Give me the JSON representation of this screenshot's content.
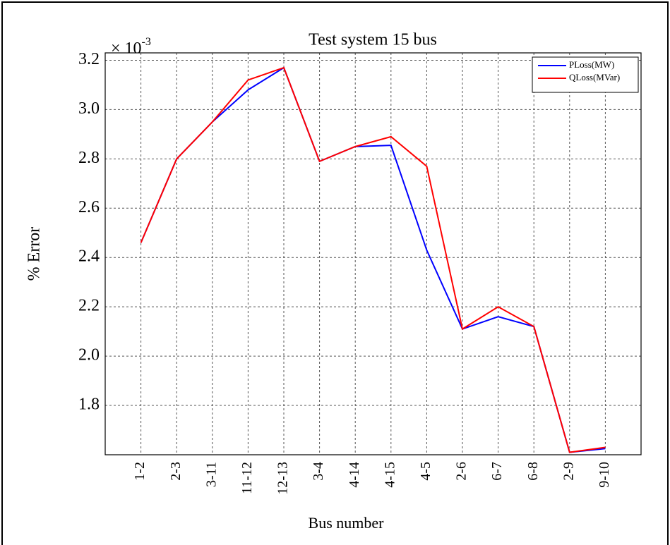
{
  "chart_data": {
    "type": "line",
    "title": "Test system 15 bus",
    "multiplier": {
      "base": "× 10",
      "exponent": "-3"
    },
    "x_label": "Bus number",
    "y_label": "% Error",
    "categories": [
      "1-2",
      "2-3",
      "3-11",
      "11-12",
      "12-13",
      "3-4",
      "4-14",
      "4-15",
      "4-5",
      "2-6",
      "6-7",
      "6-8",
      "2-9",
      "9-10"
    ],
    "series": [
      {
        "name": "PLoss(MW)",
        "color": "#0000ff",
        "values": [
          2.46,
          2.8,
          2.95,
          3.08,
          3.17,
          2.79,
          2.85,
          2.855,
          2.43,
          2.11,
          2.16,
          2.12,
          1.61,
          1.625
        ]
      },
      {
        "name": "QLoss(MVar)",
        "color": "#ff0000",
        "values": [
          2.46,
          2.8,
          2.95,
          3.12,
          3.17,
          2.79,
          2.85,
          2.89,
          2.77,
          2.11,
          2.2,
          2.12,
          1.61,
          1.63
        ]
      }
    ],
    "ylim": [
      1.6,
      3.23
    ],
    "yticks": [
      1.8,
      {
        "value": 2,
        "label": "2.0"
      },
      2.2,
      2.4,
      2.6,
      2.8,
      {
        "value": 3,
        "label": "3.0"
      },
      3.2
    ],
    "grid": true,
    "legend": "top-right"
  }
}
